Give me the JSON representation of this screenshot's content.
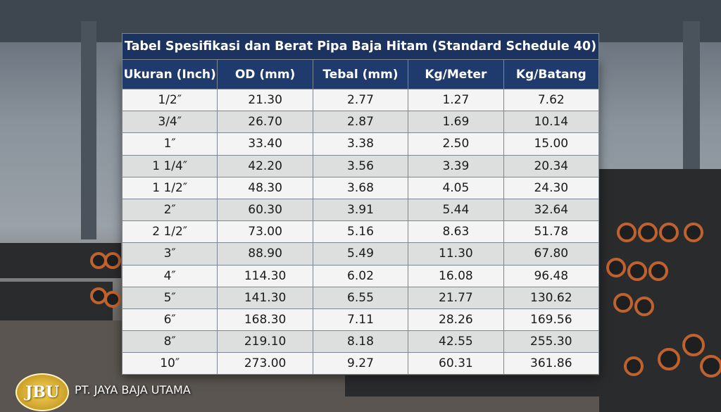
{
  "table": {
    "title": "Tabel Spesifikasi dan Berat Pipa Baja Hitam (Standard Schedule 40)",
    "headers": [
      "Ukuran (Inch)",
      "OD (mm)",
      "Tebal (mm)",
      "Kg/Meter",
      "Kg/Batang"
    ],
    "rows": [
      [
        "1/2″",
        "21.30",
        "2.77",
        "1.27",
        "7.62"
      ],
      [
        "3/4″",
        "26.70",
        "2.87",
        "1.69",
        "10.14"
      ],
      [
        "1″",
        "33.40",
        "3.38",
        "2.50",
        "15.00"
      ],
      [
        "1 1/4″",
        "42.20",
        "3.56",
        "3.39",
        "20.34"
      ],
      [
        "1 1/2″",
        "48.30",
        "3.68",
        "4.05",
        "24.30"
      ],
      [
        "2″",
        "60.30",
        "3.91",
        "5.44",
        "32.64"
      ],
      [
        "2 1/2″",
        "73.00",
        "5.16",
        "8.63",
        "51.78"
      ],
      [
        "3″",
        "88.90",
        "5.49",
        "11.30",
        "67.80"
      ],
      [
        "4″",
        "114.30",
        "6.02",
        "16.08",
        "96.48"
      ],
      [
        "5″",
        "141.30",
        "6.55",
        "21.77",
        "130.62"
      ],
      [
        "6″",
        "168.30",
        "7.11",
        "28.26",
        "169.56"
      ],
      [
        "8″",
        "219.10",
        "8.18",
        "42.55",
        "255.30"
      ],
      [
        "10″",
        "273.00",
        "9.27",
        "60.31",
        "361.86"
      ]
    ]
  },
  "brand": {
    "logo": "JBU",
    "name": "PT. JAYA BAJA UTAMA"
  }
}
